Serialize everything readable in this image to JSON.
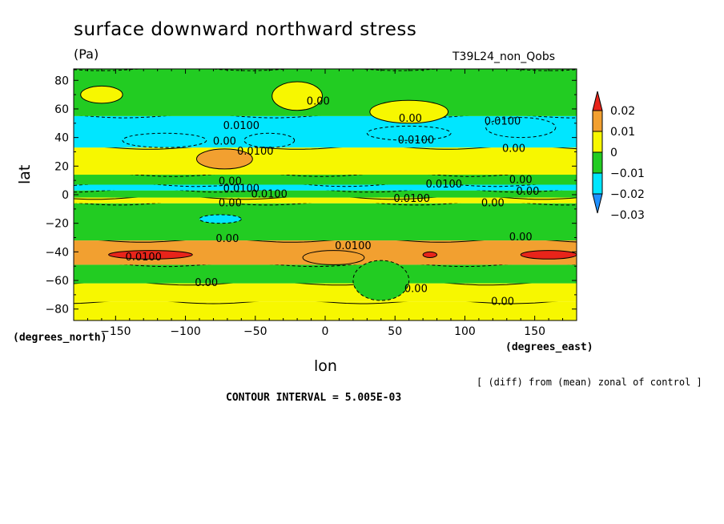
{
  "title": "surface downward northward stress",
  "units": "(Pa)",
  "run_name": "T39L24_non_Qobs",
  "xlabel": "lon",
  "ylabel": "lat",
  "x_unit_label": "(degrees_east)",
  "y_unit_label": "(degrees_north)",
  "note": "[ (diff) from (mean) zonal of control ]",
  "contour_interval": "CONTOUR INTERVAL = 5.005E-03",
  "colors": {
    "red": "#e8241a",
    "orange": "#f2a030",
    "yellow": "#f7f700",
    "green": "#22cc22",
    "cyan": "#00e6ff",
    "blue": "#1e90ff"
  },
  "chart_data": {
    "type": "heatmap",
    "title": "surface downward northward stress",
    "xlabel": "lon",
    "ylabel": "lat",
    "xlim": [
      -180,
      180
    ],
    "ylim": [
      -88,
      88
    ],
    "x_ticks": [
      -150,
      -100,
      -50,
      0,
      50,
      100,
      150
    ],
    "x_tick_labels": [
      "−150",
      "−100",
      "−50",
      "0",
      "50",
      "100",
      "150"
    ],
    "y_ticks": [
      -80,
      -60,
      -40,
      -20,
      0,
      20,
      40,
      60,
      80
    ],
    "y_tick_labels": [
      "−80",
      "−60",
      "−40",
      "−20",
      "0",
      "20",
      "40",
      "60",
      "80"
    ],
    "colorbar": {
      "levels": [
        "0.02",
        "0.01",
        "0",
        "−0.01",
        "−0.02",
        "−0.03"
      ],
      "colors": [
        "#e8241a",
        "#f2a030",
        "#f7f700",
        "#22cc22",
        "#00e6ff",
        "#1e90ff"
      ]
    },
    "zonal_bands": [
      {
        "lat_from": -88,
        "lat_to": -75,
        "value": 0.003
      },
      {
        "lat_from": -75,
        "lat_to": -62,
        "value": 0.003
      },
      {
        "lat_from": -62,
        "lat_to": -49,
        "value": -0.003
      },
      {
        "lat_from": -49,
        "lat_to": -32,
        "value": 0.012
      },
      {
        "lat_from": -32,
        "lat_to": -6,
        "value": -0.004
      },
      {
        "lat_from": -6,
        "lat_to": -2,
        "value": 0.004
      },
      {
        "lat_from": -2,
        "lat_to": 3,
        "value": -0.004
      },
      {
        "lat_from": 3,
        "lat_to": 7,
        "value": -0.014
      },
      {
        "lat_from": 7,
        "lat_to": 14,
        "value": -0.004
      },
      {
        "lat_from": 14,
        "lat_to": 33,
        "value": 0.006
      },
      {
        "lat_from": 33,
        "lat_to": 55,
        "value": -0.012
      },
      {
        "lat_from": 55,
        "lat_to": 88,
        "value": -0.004
      }
    ],
    "anomalies": [
      {
        "lon": -125,
        "lat": -42,
        "rx": 30,
        "ry": 3,
        "value": 0.022
      },
      {
        "lon": 6,
        "lat": -44,
        "rx": 22,
        "ry": 5,
        "value": 0.015
      },
      {
        "lon": 75,
        "lat": -42,
        "rx": 5,
        "ry": 2,
        "value": 0.022
      },
      {
        "lon": 160,
        "lat": -42,
        "rx": 20,
        "ry": 3,
        "value": 0.022
      },
      {
        "lon": -72,
        "lat": 25,
        "rx": 20,
        "ry": 7,
        "value": 0.015
      },
      {
        "lon": -115,
        "lat": 38,
        "rx": 30,
        "ry": 5,
        "value": -0.02
      },
      {
        "lon": -40,
        "lat": 38,
        "rx": 18,
        "ry": 5,
        "value": -0.02
      },
      {
        "lon": 60,
        "lat": 43,
        "rx": 30,
        "ry": 5,
        "value": -0.02
      },
      {
        "lon": 140,
        "lat": 47,
        "rx": 25,
        "ry": 7,
        "value": -0.02
      },
      {
        "lon": -20,
        "lat": 69,
        "rx": 18,
        "ry": 10,
        "value": 0.003
      },
      {
        "lon": 60,
        "lat": 58,
        "rx": 28,
        "ry": 8,
        "value": 0.003
      },
      {
        "lon": -160,
        "lat": 70,
        "rx": 15,
        "ry": 6,
        "value": 0.003
      },
      {
        "lon": 40,
        "lat": -60,
        "rx": 20,
        "ry": 14,
        "value": -0.003
      },
      {
        "lon": -75,
        "lat": -17,
        "rx": 15,
        "ry": 3,
        "value": -0.014
      }
    ],
    "contour_labels": [
      {
        "text": "0.00",
        "lon": -5,
        "lat": 63
      },
      {
        "text": "0.00",
        "lon": 61,
        "lat": 51
      },
      {
        "text": "0.0100",
        "lon": 127,
        "lat": 49
      },
      {
        "text": "0.0100",
        "lon": -60,
        "lat": 46
      },
      {
        "text": "0.00",
        "lon": -72,
        "lat": 35
      },
      {
        "text": "0.0100",
        "lon": 65,
        "lat": 36
      },
      {
        "text": "0.00",
        "lon": 135,
        "lat": 30
      },
      {
        "text": "0.0100",
        "lon": -50,
        "lat": 28
      },
      {
        "text": "0.00",
        "lon": -68,
        "lat": 7
      },
      {
        "text": "0.0100",
        "lon": -60,
        "lat": 2
      },
      {
        "text": "0.0100",
        "lon": -40,
        "lat": -2
      },
      {
        "text": "0.00",
        "lon": -68,
        "lat": -8
      },
      {
        "text": "0.0100",
        "lon": 85,
        "lat": 5
      },
      {
        "text": "0.0100",
        "lon": 62,
        "lat": -5
      },
      {
        "text": "0.00",
        "lon": 140,
        "lat": 8
      },
      {
        "text": "0.00",
        "lon": 145,
        "lat": 0
      },
      {
        "text": "0.00",
        "lon": 120,
        "lat": -8
      },
      {
        "text": "0.00",
        "lon": -70,
        "lat": -33
      },
      {
        "text": "0.0100",
        "lon": 20,
        "lat": -38
      },
      {
        "text": "0.00",
        "lon": 140,
        "lat": -32
      },
      {
        "text": "0.0100",
        "lon": -130,
        "lat": -46
      },
      {
        "text": "0.00",
        "lon": -85,
        "lat": -64
      },
      {
        "text": "0.00",
        "lon": 65,
        "lat": -68
      },
      {
        "text": "0.00",
        "lon": 127,
        "lat": -77
      }
    ]
  }
}
